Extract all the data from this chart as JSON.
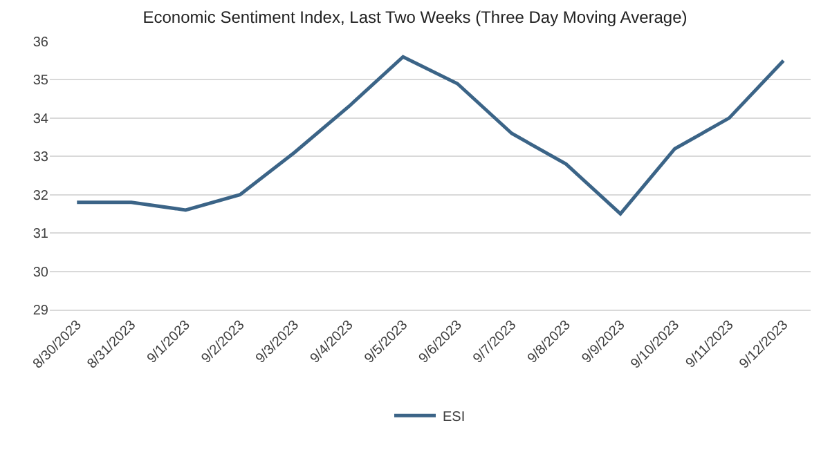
{
  "chart_data": {
    "type": "line",
    "title": "Economic Sentiment Index, Last Two Weeks (Three Day Moving Average)",
    "categories": [
      "8/30/2023",
      "8/31/2023",
      "9/1/2023",
      "9/2/2023",
      "9/3/2023",
      "9/4/2023",
      "9/5/2023",
      "9/6/2023",
      "9/7/2023",
      "9/8/2023",
      "9/9/2023",
      "9/10/2023",
      "9/11/2023",
      "9/12/2023"
    ],
    "series": [
      {
        "name": "ESI",
        "color": "#3b6487",
        "values": [
          31.8,
          31.8,
          31.6,
          32.0,
          33.1,
          34.3,
          35.6,
          34.9,
          33.6,
          32.8,
          31.5,
          33.2,
          34.0,
          35.5
        ]
      }
    ],
    "ylim": [
      29,
      36
    ],
    "yticks": [
      29,
      30,
      31,
      32,
      33,
      34,
      35,
      36
    ],
    "grid": "y",
    "legend": "bottom",
    "marker": "none",
    "line_style": "solid"
  }
}
